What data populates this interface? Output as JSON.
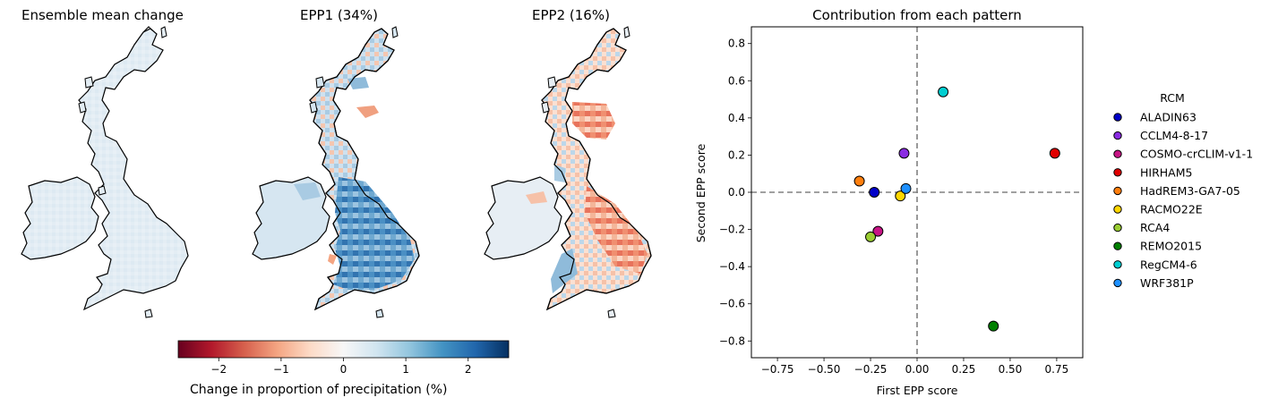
{
  "maps": {
    "titles": [
      "Ensemble mean change",
      "EPP1 (34%)",
      "EPP2 (16%)"
    ]
  },
  "colorbar": {
    "label": "Change in proportion of precipitation (%)",
    "ticks": [
      -2,
      -1,
      0,
      1,
      2
    ],
    "tick_labels": [
      "−2",
      "−1",
      "0",
      "1",
      "2"
    ],
    "range": [
      -2.65,
      2.65
    ],
    "colormap": "RdBu"
  },
  "chart_data": {
    "type": "scatter",
    "title": "Contribution from each pattern",
    "xlabel": "First EPP score",
    "ylabel": "Second EPP score",
    "xlim": [
      -0.89,
      0.89
    ],
    "ylim": [
      -0.89,
      0.89
    ],
    "xticks": [
      -0.75,
      -0.5,
      -0.25,
      0.0,
      0.25,
      0.5,
      0.75
    ],
    "xtick_labels": [
      "−0.75",
      "−0.50",
      "−0.25",
      "0.00",
      "0.25",
      "0.50",
      "0.75"
    ],
    "yticks": [
      -0.8,
      -0.6,
      -0.4,
      -0.2,
      0.0,
      0.2,
      0.4,
      0.6,
      0.8
    ],
    "ytick_labels": [
      "−0.8",
      "−0.6",
      "−0.4",
      "−0.2",
      "0.0",
      "0.2",
      "0.4",
      "0.6",
      "0.8"
    ],
    "grid": false,
    "reference_lines": {
      "x": 0,
      "y": 0,
      "style": "dashed",
      "color": "#808080"
    },
    "legend_title": "RCM",
    "legend_position": "right, outside",
    "points": [
      {
        "name": "ALADIN63",
        "x": -0.23,
        "y": 0.0,
        "color": "#0000c8"
      },
      {
        "name": "CCLM4-8-17",
        "x": -0.07,
        "y": 0.21,
        "color": "#8a2be2"
      },
      {
        "name": "COSMO-crCLIM-v1-1",
        "x": -0.21,
        "y": -0.21,
        "color": "#c71585"
      },
      {
        "name": "HIRHAM5",
        "x": 0.74,
        "y": 0.21,
        "color": "#e00000"
      },
      {
        "name": "HadREM3-GA7-05",
        "x": -0.31,
        "y": 0.06,
        "color": "#ff7f0e"
      },
      {
        "name": "RACMO22E",
        "x": -0.09,
        "y": -0.02,
        "color": "#ffd700"
      },
      {
        "name": "RCA4",
        "x": -0.25,
        "y": -0.24,
        "color": "#9acd32"
      },
      {
        "name": "REMO2015",
        "x": 0.41,
        "y": -0.72,
        "color": "#008000"
      },
      {
        "name": "RegCM4-6",
        "x": 0.14,
        "y": 0.54,
        "color": "#00ced1"
      },
      {
        "name": "WRF381P",
        "x": -0.06,
        "y": 0.02,
        "color": "#1e90ff"
      }
    ]
  }
}
